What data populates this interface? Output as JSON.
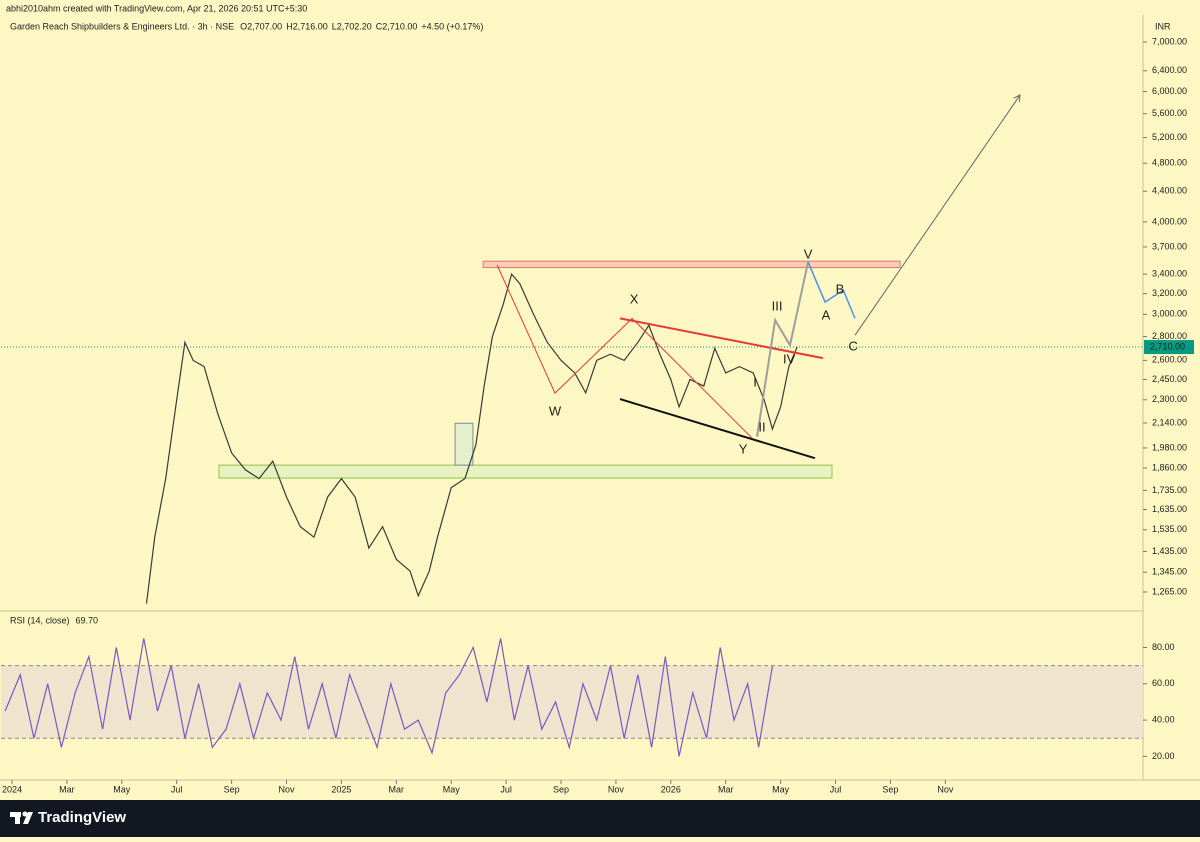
{
  "header": {
    "attribution": "abhi2010ahm created with TradingView.com, Apr 21, 2026 20:51 UTC+5:30",
    "brand": "TradingView"
  },
  "chart_data": [
    {
      "type": "line",
      "title": "Garden Reach Shipbuilders & Engineers Ltd. · 3h · NSE",
      "ohlc": [
        {
          "key": "O",
          "value": "2,707.00"
        },
        {
          "key": "H",
          "value": "2,716.00"
        },
        {
          "key": "L",
          "value": "2,702.20"
        },
        {
          "key": "C",
          "value": "2,710.00"
        }
      ],
      "change": "+4.50 (+0.17%)",
      "currency": "INR",
      "color": "#3a3a3a",
      "log_scale": true,
      "x": [
        4.9,
        5.2,
        5.6,
        6.0,
        6.3,
        6.6,
        7.0,
        7.5,
        8.0,
        8.5,
        9.0,
        9.5,
        10.0,
        10.5,
        11.0,
        11.5,
        12.0,
        12.5,
        13.0,
        13.5,
        14.0,
        14.5,
        14.8,
        15.2,
        15.5,
        16.0,
        16.5,
        16.9,
        17.2,
        17.5,
        17.9,
        18.2,
        18.5,
        19.0,
        19.5,
        20.0,
        20.5,
        20.9,
        21.3,
        21.8,
        22.3,
        22.8,
        23.2,
        23.6,
        24.0,
        24.3,
        24.7,
        25.2,
        25.6,
        26.0,
        26.5,
        27.0,
        27.4,
        27.7,
        28.0,
        28.3,
        28.6
      ],
      "values": [
        1220,
        1500,
        1800,
        2300,
        2750,
        2600,
        2550,
        2200,
        1950,
        1850,
        1800,
        1900,
        1700,
        1550,
        1500,
        1700,
        1800,
        1700,
        1450,
        1550,
        1400,
        1350,
        1250,
        1350,
        1500,
        1750,
        1800,
        2000,
        2400,
        2800,
        3100,
        3400,
        3300,
        3000,
        2750,
        2600,
        2500,
        2350,
        2600,
        2650,
        2600,
        2750,
        2900,
        2650,
        2450,
        2250,
        2450,
        2400,
        2700,
        2500,
        2550,
        2500,
        2300,
        2100,
        2250,
        2550,
        2710
      ],
      "xlim": [
        -0.4,
        41.2
      ],
      "xticks": [
        {
          "value": 0,
          "label": "2024"
        },
        {
          "value": 2,
          "label": "Mar"
        },
        {
          "value": 4,
          "label": "May"
        },
        {
          "value": 6,
          "label": "Jul"
        },
        {
          "value": 8,
          "label": "Sep"
        },
        {
          "value": 10,
          "label": "Nov"
        },
        {
          "value": 12,
          "label": "2025"
        },
        {
          "value": 14,
          "label": "Mar"
        },
        {
          "value": 16,
          "label": "May"
        },
        {
          "value": 18,
          "label": "Jul"
        },
        {
          "value": 20,
          "label": "Sep"
        },
        {
          "value": 22,
          "label": "Nov"
        },
        {
          "value": 24,
          "label": "2026"
        },
        {
          "value": 26,
          "label": "Mar"
        },
        {
          "value": 28,
          "label": "May"
        },
        {
          "value": 30,
          "label": "Jul"
        },
        {
          "value": 32,
          "label": "Sep"
        },
        {
          "value": 34,
          "label": "Nov"
        }
      ],
      "ylim": [
        1196,
        7613
      ],
      "yticks": [
        {
          "value": 7000,
          "label": "7,000.00"
        },
        {
          "value": 6400,
          "label": "6,400.00"
        },
        {
          "value": 6000,
          "label": "6,000.00"
        },
        {
          "value": 5600,
          "label": "5,600.00"
        },
        {
          "value": 5200,
          "label": "5,200.00"
        },
        {
          "value": 4800,
          "label": "4,800.00"
        },
        {
          "value": 4400,
          "label": "4,400.00"
        },
        {
          "value": 4000,
          "label": "4,000.00"
        },
        {
          "value": 3700,
          "label": "3,700.00"
        },
        {
          "value": 3400,
          "label": "3,400.00"
        },
        {
          "value": 3200,
          "label": "3,200.00"
        },
        {
          "value": 3000,
          "label": "3,000.00"
        },
        {
          "value": 2800,
          "label": "2,800.00"
        },
        {
          "value": 2600,
          "label": "2,600.00"
        },
        {
          "value": 2450,
          "label": "2,450.00"
        },
        {
          "value": 2300,
          "label": "2,300.00"
        },
        {
          "value": 2140,
          "label": "2,140.00"
        },
        {
          "value": 1980,
          "label": "1,980.00"
        },
        {
          "value": 1860,
          "label": "1,860.00"
        },
        {
          "value": 1735,
          "label": "1,735.00"
        },
        {
          "value": 1635,
          "label": "1,635.00"
        },
        {
          "value": 1535,
          "label": "1,535.00"
        },
        {
          "value": 1435,
          "label": "1,435.00"
        },
        {
          "value": 1345,
          "label": "1,345.00"
        },
        {
          "value": 1265,
          "label": "1,265.00"
        }
      ],
      "last_price": {
        "value": 2710,
        "label": "2,710.00",
        "color": "#089981"
      },
      "zones": [
        {
          "x": [
            17.16,
            32.35
          ],
          "y": [
            3470,
            3540
          ],
          "fill": "#f6c3b0",
          "stroke": "#e57373"
        },
        {
          "x": [
            7.54,
            29.87
          ],
          "y": [
            1803,
            1877
          ],
          "fill": "#e4efbf",
          "stroke": "#8bc34a"
        },
        {
          "x": [
            16.14,
            16.79
          ],
          "y": [
            1877,
            2138
          ],
          "fill": "#dfeccd",
          "stroke": "#78909c"
        }
      ],
      "drawings": [
        {
          "points": [
            [
              22.15,
              2963
            ],
            [
              29.54,
              2618
            ]
          ],
          "color": "#e53935",
          "width": 2
        },
        {
          "points": [
            [
              22.15,
              2305
            ],
            [
              29.25,
              1918
            ]
          ],
          "color": "#111111",
          "width": 2
        },
        {
          "points": [
            [
              17.67,
              3498
            ],
            [
              19.78,
              2348
            ],
            [
              22.59,
              2963
            ],
            [
              26.96,
              2041
            ]
          ],
          "color": "#e53935",
          "width": 1
        },
        {
          "points": [
            [
              27.14,
              2050
            ],
            [
              27.8,
              2946
            ],
            [
              28.34,
              2726
            ],
            [
              29.0,
              3530
            ]
          ],
          "color": "#9e9e9e",
          "width": 2
        },
        {
          "points": [
            [
              29.0,
              3530
            ],
            [
              29.62,
              3117
            ],
            [
              30.28,
              3235
            ],
            [
              30.71,
              2963
            ]
          ],
          "color": "#4f8ef7",
          "width": 1.5
        },
        {
          "points": [
            [
              30.71,
              2812
            ],
            [
              36.72,
              5935
            ]
          ],
          "color": "#666666",
          "width": 1,
          "arrow": true
        }
      ],
      "annotations": [
        {
          "text": "W",
          "x": 19.78,
          "y": 2214,
          "color": "#e53935"
        },
        {
          "text": "X",
          "x": 22.66,
          "y": 3136,
          "color": "#e53935"
        },
        {
          "text": "Y",
          "x": 26.63,
          "y": 1966,
          "color": "#e53935"
        },
        {
          "text": "I",
          "x": 27.07,
          "y": 2423,
          "color": "#111111"
        },
        {
          "text": "II",
          "x": 27.32,
          "y": 2106,
          "color": "#111111"
        },
        {
          "text": "III",
          "x": 27.87,
          "y": 3068,
          "color": "#111111"
        },
        {
          "text": "IV",
          "x": 28.31,
          "y": 2602,
          "color": "#111111"
        },
        {
          "text": "V",
          "x": 29.0,
          "y": 3606,
          "color": "#111111"
        },
        {
          "text": "A",
          "x": 29.65,
          "y": 2986,
          "color": "#4f8ef7"
        },
        {
          "text": "B",
          "x": 30.16,
          "y": 3237,
          "color": "#4f8ef7"
        },
        {
          "text": "C",
          "x": 30.64,
          "y": 2708,
          "color": "#4f8ef7"
        }
      ]
    },
    {
      "type": "line",
      "title": "RSI (14, close)",
      "last_value": {
        "value": 69.7,
        "label": "69.70"
      },
      "color": "#7e57c2",
      "x": [
        -0.25,
        0.3,
        0.8,
        1.3,
        1.8,
        2.3,
        2.8,
        3.3,
        3.8,
        4.3,
        4.8,
        5.3,
        5.8,
        6.3,
        6.8,
        7.3,
        7.8,
        8.3,
        8.8,
        9.3,
        9.8,
        10.3,
        10.8,
        11.3,
        11.8,
        12.3,
        12.8,
        13.3,
        13.8,
        14.3,
        14.8,
        15.3,
        15.8,
        16.3,
        16.8,
        17.3,
        17.8,
        18.3,
        18.8,
        19.3,
        19.8,
        20.3,
        20.8,
        21.3,
        21.8,
        22.3,
        22.8,
        23.3,
        23.8,
        24.3,
        24.8,
        25.3,
        25.8,
        26.3,
        26.8,
        27.2,
        27.7
      ],
      "values": [
        45,
        65,
        30,
        60,
        25,
        55,
        75,
        35,
        80,
        40,
        85,
        45,
        70,
        30,
        60,
        25,
        35,
        60,
        30,
        55,
        40,
        75,
        35,
        60,
        30,
        65,
        45,
        25,
        60,
        35,
        40,
        22,
        55,
        65,
        80,
        50,
        85,
        40,
        70,
        35,
        50,
        25,
        60,
        40,
        70,
        30,
        65,
        25,
        75,
        20,
        55,
        30,
        80,
        40,
        60,
        25,
        69.7
      ],
      "band": [
        30,
        70
      ],
      "ylim": [
        7,
        99
      ],
      "yticks": [
        {
          "value": 80,
          "label": "80.00"
        },
        {
          "value": 60,
          "label": "60.00"
        },
        {
          "value": 40,
          "label": "40.00"
        },
        {
          "value": 20,
          "label": "20.00"
        }
      ]
    }
  ]
}
